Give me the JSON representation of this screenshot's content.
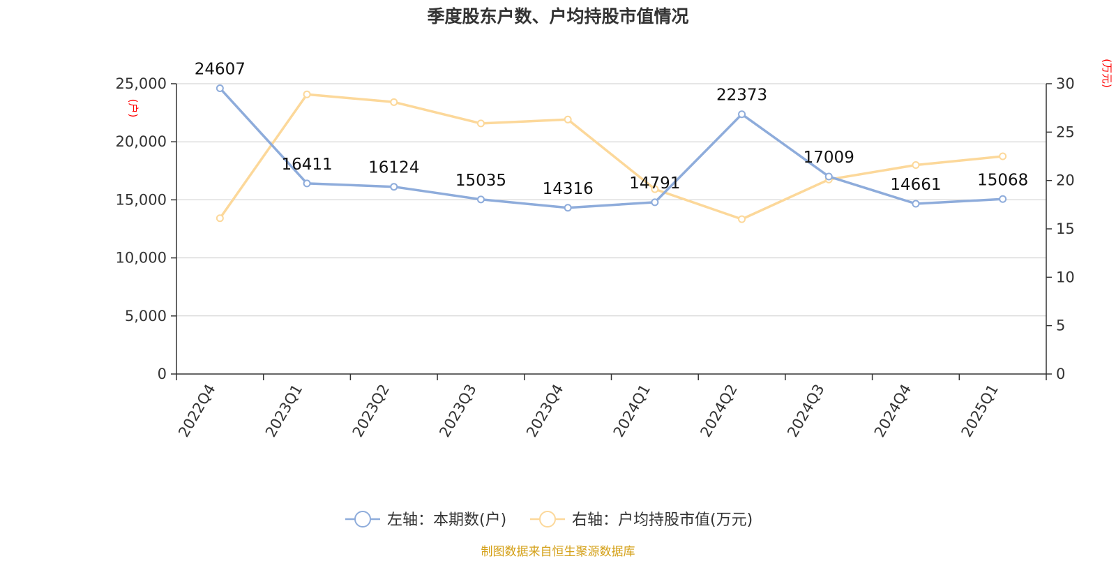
{
  "chart_data": {
    "type": "line",
    "title": "季度股东户数、户均持股市值情况",
    "categories": [
      "2022Q4",
      "2023Q1",
      "2023Q2",
      "2023Q3",
      "2023Q4",
      "2024Q1",
      "2024Q2",
      "2024Q3",
      "2024Q4",
      "2025Q1"
    ],
    "series": [
      {
        "name": "左轴：本期数(户)",
        "axis": "left",
        "color": "#8eacdb",
        "values": [
          24607,
          16411,
          16124,
          15035,
          14316,
          14791,
          22373,
          17009,
          14661,
          15068
        ],
        "data_labels": [
          "24607",
          "16411",
          "16124",
          "15035",
          "14316",
          "14791",
          "22373",
          "17009",
          "14661",
          "15068"
        ]
      },
      {
        "name": "右轴：户均持股市值(万元)",
        "axis": "right",
        "color": "#fcd89a",
        "values": [
          16.1,
          28.9,
          28.1,
          25.9,
          26.3,
          19.1,
          16.0,
          20.1,
          21.6,
          22.5
        ]
      }
    ],
    "y_left": {
      "label": "(户)",
      "min": 0,
      "max": 25000,
      "ticks": [
        0,
        5000,
        10000,
        15000,
        20000,
        25000
      ],
      "tick_labels": [
        "0",
        "5,000",
        "10,000",
        "15,000",
        "20,000",
        "25,000"
      ]
    },
    "y_right": {
      "label": "(万元)",
      "min": 0,
      "max": 30,
      "ticks": [
        0,
        5,
        10,
        15,
        20,
        25,
        30
      ],
      "tick_labels": [
        "0",
        "5",
        "10",
        "15",
        "20",
        "25",
        "30"
      ]
    },
    "grid": true,
    "legend_position": "bottom-center",
    "source_note": "制图数据来自恒生聚源数据库",
    "colors": {
      "axis": "#333333",
      "grid": "#cccccc",
      "axis_label": "#ff0000",
      "source": "#d4a017"
    }
  }
}
